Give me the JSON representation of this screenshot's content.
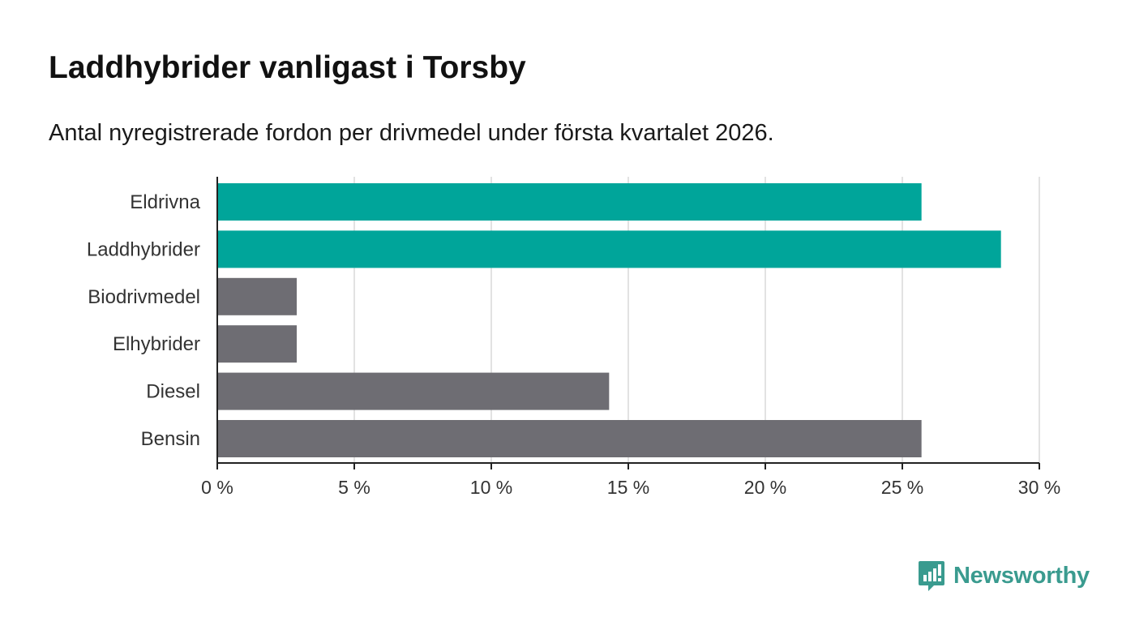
{
  "title": "Laddhybrider vanligast i Torsby",
  "subtitle": "Antal nyregistrerade fordon per drivmedel under första kvartalet 2026.",
  "brand": {
    "name": "Newsworthy",
    "color": "#3a9b8f",
    "icon": "newsworthy-logo-icon"
  },
  "chart_data": {
    "type": "bar",
    "orientation": "horizontal",
    "categories": [
      "Eldrivna",
      "Laddhybrider",
      "Biodrivmedel",
      "Elhybrider",
      "Diesel",
      "Bensin"
    ],
    "values": [
      25.7,
      28.6,
      2.9,
      2.9,
      14.3,
      25.7
    ],
    "bar_colors": [
      "#00a59a",
      "#00a59a",
      "#6e6d73",
      "#6e6d73",
      "#6e6d73",
      "#6e6d73"
    ],
    "xlim": [
      0,
      30
    ],
    "xticks": [
      0,
      5,
      10,
      15,
      20,
      25,
      30
    ],
    "xtick_labels": [
      "0 %",
      "5 %",
      "10 %",
      "15 %",
      "20 %",
      "25 %",
      "30 %"
    ],
    "grid": true,
    "xlabel": "",
    "ylabel": ""
  }
}
